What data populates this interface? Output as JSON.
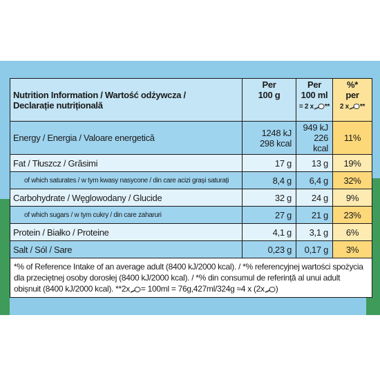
{
  "header": {
    "title_line1": "Nutrition Information / Wartość odżywcza /",
    "title_line2": "Declarație nutrițională",
    "col1_line1": "Per",
    "col1_line2": "100 g",
    "col2_line1": "Per",
    "col2_line2": "100 ml",
    "col2_line3_pre": "= 2 x",
    "col2_line3_post": "**",
    "col3_line1": "%*",
    "col3_line2": "per",
    "col3_line3_pre": "2 x",
    "col3_line3_post": "**"
  },
  "rows": [
    [
      "Energy / Energia / Valoare energetică",
      "1248 kJ",
      "298 kcal",
      "949 kJ",
      "226 kcal",
      "11%"
    ],
    [
      "Fat / Tłuszcz / Grăsimi",
      "17 g",
      "13 g",
      "19%"
    ],
    [
      "of which saturates / w tym kwasy nasycone / din care acizi grași saturați",
      "8,4 g",
      "6,4 g",
      "32%"
    ],
    [
      "Carbohydrate / Węglowodany / Glucide",
      "32 g",
      "24 g",
      "9%"
    ],
    [
      "of which sugars / w tym cukry / din care zaharuri",
      "27 g",
      "21 g",
      "23%"
    ],
    [
      "Protein / Białko / Proteine",
      "4,1 g",
      "3,1 g",
      "6%"
    ],
    [
      "Salt / Sól / Sare",
      "0,23 g",
      "0,17 g",
      "3%"
    ]
  ],
  "footnote": {
    "text": "*% of Reference Intake of an average adult (8400 kJ/2000 kcal). / *% referencyjnej wartości spożycia dla przeciętnej osoby dorosłej (8400 kJ/2000 kcal). / *% din consumul de referință al unui adult obișnuit (8400 kJ/2000 kcal). **2x",
    "text2": "= 100ml = 76g,427ml/324g ≈4 x (2x",
    "text3": ")"
  }
}
